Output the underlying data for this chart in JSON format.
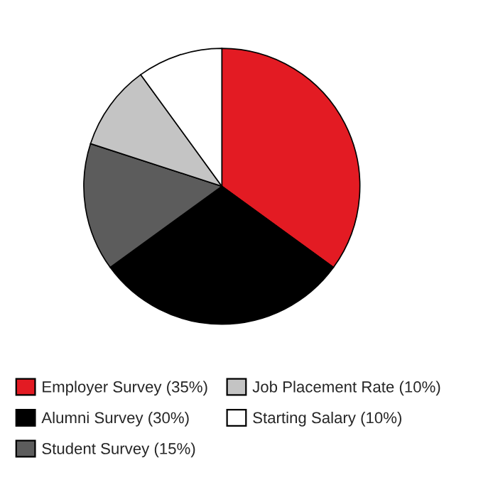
{
  "chart_data": {
    "type": "pie",
    "categories": [
      "Employer Survey (35%)",
      "Alumni Survey (30%)",
      "Student Survey (15%)",
      "Job Placement Rate (10%)",
      "Starting Salary (10%)"
    ],
    "values": [
      35,
      30,
      15,
      10,
      10
    ],
    "colors": [
      "#e31b23",
      "#000000",
      "#5c5c5c",
      "#c4c4c4",
      "#ffffff"
    ],
    "legend": "bottom"
  }
}
